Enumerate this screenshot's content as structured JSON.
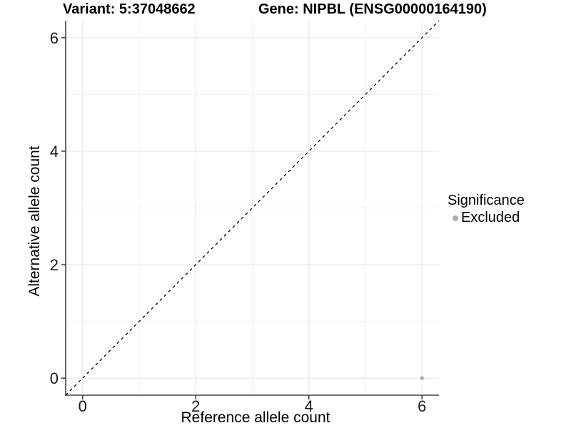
{
  "chart_data": {
    "type": "scatter",
    "title_left": "Variant: 5:37048662",
    "title_right": "Gene: NIPBL (ENSG00000164190)",
    "xlabel": "Reference allele count",
    "ylabel": "Alternative allele count",
    "xlim": [
      -0.3,
      6.3
    ],
    "ylim": [
      -0.3,
      6.3
    ],
    "xticks": [
      0,
      2,
      4,
      6
    ],
    "yticks": [
      0,
      2,
      4,
      6
    ],
    "minor_xticks": [
      1,
      3,
      5
    ],
    "minor_yticks": [
      1,
      3,
      5
    ],
    "grid": "major and minor gridlines on white panel",
    "reference_line": {
      "type": "identity",
      "style": "dashed",
      "color": "#000000",
      "from": [
        -0.3,
        -0.3
      ],
      "to": [
        6.3,
        6.3
      ]
    },
    "series": [
      {
        "name": "Excluded",
        "color": "#aeaeae",
        "points": [
          {
            "x": 6,
            "y": 0
          }
        ]
      }
    ],
    "legend": {
      "title": "Significance",
      "position": "right",
      "items": [
        {
          "label": "Excluded",
          "color": "#aeaeae"
        }
      ]
    }
  },
  "colors": {
    "background": "#ffffff",
    "grid_major": "#e4e4e4",
    "grid_minor": "#f0f0f0",
    "axis_line": "#404040",
    "tick_text": "#1a1a1a",
    "point": "#aeaeae"
  }
}
